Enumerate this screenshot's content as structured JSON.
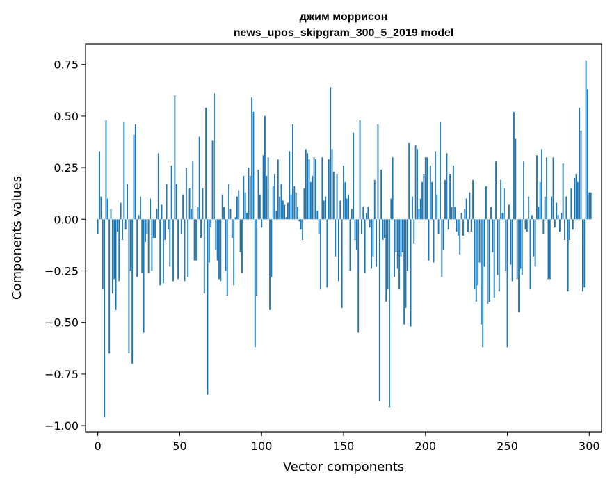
{
  "chart_data": {
    "type": "bar",
    "title_line1": "джим моррисон",
    "title_line2": "news_upos_skipgram_300_5_2019 model",
    "xlabel": "Vector components",
    "ylabel": "Components values",
    "xlim": [
      -7.5,
      307.5
    ],
    "ylim": [
      -1.03,
      0.85
    ],
    "xticks": [
      0,
      50,
      100,
      150,
      200,
      250,
      300
    ],
    "xtick_labels": [
      "0",
      "50",
      "100",
      "150",
      "200",
      "250",
      "300"
    ],
    "yticks": [
      -1.0,
      -0.75,
      -0.5,
      -0.25,
      0.0,
      0.25,
      0.5,
      0.75
    ],
    "ytick_labels": [
      "−1.00",
      "−0.75",
      "−0.50",
      "−0.25",
      "0.00",
      "0.25",
      "0.50",
      "0.75"
    ],
    "bar_color": "#1f77b4",
    "grid": false,
    "values": [
      -0.07,
      0.33,
      0.11,
      -0.34,
      -0.96,
      0.48,
      0.1,
      -0.65,
      0.05,
      -0.36,
      -0.29,
      -0.44,
      -0.06,
      -0.3,
      0.08,
      -0.1,
      0.47,
      -0.05,
      0.17,
      -0.65,
      -0.25,
      -0.7,
      0.41,
      0.46,
      -0.28,
      0.02,
      0.11,
      -0.26,
      -0.55,
      -0.11,
      -0.07,
      -0.26,
      0.1,
      -0.25,
      -0.09,
      -0.09,
      0.05,
      0.32,
      -0.32,
      0.07,
      -0.31,
      -0.1,
      0.17,
      -0.05,
      -0.23,
      0.26,
      -0.3,
      0.6,
      0.17,
      -0.29,
      0.0,
      -0.07,
      0.12,
      -0.3,
      0.25,
      -0.28,
      0.15,
      0.05,
      0.28,
      -0.2,
      -0.2,
      0.06,
      0.4,
      -0.09,
      0.15,
      -0.36,
      0.54,
      -0.85,
      -0.21,
      -0.04,
      0.38,
      0.61,
      -0.15,
      -0.2,
      -0.29,
      -0.3,
      0.12,
      0.06,
      -0.25,
      -0.37,
      0.17,
      0.05,
      -0.09,
      -0.32,
      0.01,
      0.11,
      0.14,
      -0.16,
      -0.26,
      0.21,
      0.13,
      0.03,
      0.25,
      0.21,
      0.59,
      0.52,
      -0.62,
      -0.37,
      0.24,
      0.12,
      -0.04,
      0.31,
      0.5,
      0.21,
      0.3,
      -0.44,
      -0.28,
      0.16,
      0.22,
      0.04,
      0.29,
      0.11,
      0.17,
      0.09,
      0.07,
      0.01,
      0.08,
      0.33,
      0.12,
      0.46,
      0.16,
      0.13,
      0.06,
      -0.01,
      -0.05,
      -0.1,
      0.15,
      0.34,
      0.32,
      0.29,
      0.18,
      0.21,
      0.3,
      0.29,
      0.04,
      -0.07,
      -0.34,
      0.3,
      0.09,
      0.11,
      -0.33,
      0.29,
      0.64,
      0.34,
      0.23,
      -0.18,
      0.22,
      -0.3,
      0.09,
      -0.43,
      0.26,
      0.18,
      0.1,
      0.12,
      -0.25,
      0.05,
      0.42,
      -0.1,
      -0.15,
      -0.55,
      0.48,
      -0.07,
      0.06,
      -0.26,
      0.03,
      0.06,
      -0.04,
      -0.24,
      -0.18,
      0.19,
      -0.23,
      0.46,
      -0.88,
      0.24,
      -0.1,
      -0.09,
      -0.4,
      -0.34,
      -0.91,
      0.1,
      0.3,
      -0.28,
      -0.16,
      -0.24,
      -0.34,
      -0.18,
      -0.16,
      -0.51,
      -0.43,
      -0.25,
      0.37,
      -0.52,
      0.11,
      -0.12,
      0.36,
      0.34,
      0.05,
      0.1,
      0.18,
      0.22,
      0.3,
      0.3,
      -0.2,
      0.26,
      0.18,
      -0.21,
      0.33,
      0.12,
      -0.07,
      0.47,
      -0.28,
      -0.15,
      0.19,
      0.32,
      -0.05,
      0.22,
      0.06,
      0.26,
      0.06,
      -0.06,
      -0.08,
      -0.17,
      0.03,
      -0.08,
      0.05,
      0.1,
      -0.06,
      0.13,
      -0.06,
      0.19,
      -0.34,
      -0.4,
      -0.32,
      -0.21,
      -0.51,
      -0.62,
      -0.23,
      0.16,
      -0.41,
      -0.4,
      0.06,
      -0.16,
      -0.38,
      0.28,
      -0.27,
      -0.35,
      0.19,
      0.03,
      0.15,
      -0.25,
      -0.62,
      0.07,
      -0.22,
      -0.3,
      0.52,
      0.39,
      -0.29,
      -0.45,
      -0.24,
      -0.27,
      0.28,
      -0.05,
      -0.06,
      0.11,
      -0.34,
      0.02,
      -0.18,
      -0.23,
      0.31,
      0.06,
      0.18,
      0.34,
      -0.07,
      0.11,
      0.3,
      -0.29,
      -0.29,
      0.11,
      0.3,
      -0.04,
      0.08,
      0.02,
      -0.06,
      0.03,
      0.27,
      -0.1,
      0.11,
      -0.35,
      -0.1,
      0.15,
      -0.05,
      0.2,
      0.22,
      0.18,
      0.54,
      0.43,
      -0.35,
      -0.33,
      0.77,
      0.63,
      0.13,
      0.13
    ]
  }
}
